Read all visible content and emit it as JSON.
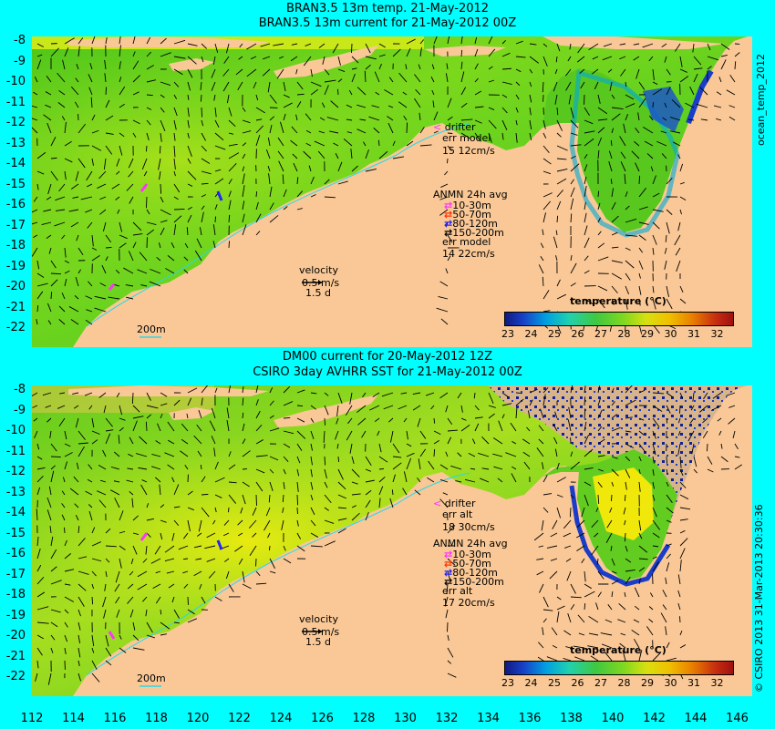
{
  "top_panel": {
    "title_line1": "BRAN3.5 13m temp. 21-May-2012",
    "title_line2": "BRAN3.5 13m current for 21-May-2012 00Z",
    "legend": {
      "drifter": "drifter",
      "err_label": "err model",
      "err_value": "15 12cm/s",
      "anmn_title": "ANMN 24h avg",
      "depth_1": "10-30m",
      "depth_2": "50-70m",
      "depth_3": "80-120m",
      "depth_4": "150-200m",
      "err2_label": "err model",
      "err2_value": "14 22cm/s"
    },
    "velocity_label": "velocity",
    "velocity_scale": "0.5 m/s",
    "velocity_time": "1.5 d",
    "isobath_label": "200m",
    "colorbar_title": "temperature (°C)",
    "side_label": "ocean_temp_2012",
    "y_ticks": [
      "-8",
      "-9",
      "-10",
      "-11",
      "-12",
      "-13",
      "-14",
      "-15",
      "-16",
      "-17",
      "-18",
      "-19",
      "-20",
      "-21",
      "-22"
    ]
  },
  "bottom_panel": {
    "title_line1": "DM00 current for 20-May-2012 12Z",
    "title_line2": "CSIRO 3day AVHRR SST for 21-May-2012 00Z",
    "legend": {
      "drifter": "drifter",
      "err_label": "err alt",
      "err_value": "18 30cm/s",
      "anmn_title": "ANMN 24h avg",
      "depth_1": "10-30m",
      "depth_2": "50-70m",
      "depth_3": "80-120m",
      "depth_4": "150-200m",
      "err2_label": "err alt",
      "err2_value": "17 20cm/s"
    },
    "velocity_label": "velocity",
    "velocity_scale": "0.5 m/s",
    "velocity_time": "1.5 d",
    "isobath_label": "200m",
    "colorbar_title": "temperature (°C)",
    "side_label": "© CSIRO 2013  31-Mar-2013 20:30:36",
    "y_ticks": [
      "-8",
      "-9",
      "-10",
      "-11",
      "-12",
      "-13",
      "-14",
      "-15",
      "-16",
      "-17",
      "-18",
      "-19",
      "-20",
      "-21",
      "-22"
    ]
  },
  "colorbar_ticks": [
    "23",
    "24",
    "25",
    "26",
    "27",
    "28",
    "29",
    "30",
    "31",
    "32"
  ],
  "x_ticks": [
    "112",
    "114",
    "116",
    "118",
    "120",
    "122",
    "124",
    "126",
    "128",
    "130",
    "132",
    "134",
    "136",
    "138",
    "140",
    "142",
    "144",
    "146"
  ],
  "colors": {
    "background": "#00ffff",
    "land": "#f9c896",
    "ocean_warm": "#5ccf1e",
    "ocean_hot": "#e8e800",
    "ocean_cool": "#00b8d0",
    "drifter": "#ff33ff",
    "depth_1": "#ff33ff",
    "depth_2": "#ff3300",
    "depth_3": "#2222ff",
    "depth_4": "#000000"
  }
}
